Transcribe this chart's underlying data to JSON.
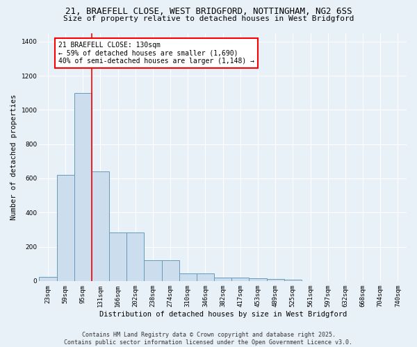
{
  "title_line1": "21, BRAEFELL CLOSE, WEST BRIDGFORD, NOTTINGHAM, NG2 6SS",
  "title_line2": "Size of property relative to detached houses in West Bridgford",
  "xlabel": "Distribution of detached houses by size in West Bridgford",
  "ylabel": "Number of detached properties",
  "categories": [
    "23sqm",
    "59sqm",
    "95sqm",
    "131sqm",
    "166sqm",
    "202sqm",
    "238sqm",
    "274sqm",
    "310sqm",
    "346sqm",
    "382sqm",
    "417sqm",
    "453sqm",
    "489sqm",
    "525sqm",
    "561sqm",
    "597sqm",
    "632sqm",
    "668sqm",
    "704sqm",
    "740sqm"
  ],
  "values": [
    25,
    620,
    1100,
    640,
    285,
    285,
    120,
    120,
    45,
    45,
    20,
    20,
    15,
    10,
    8,
    0,
    0,
    0,
    0,
    0,
    0
  ],
  "bar_color": "#ccdded",
  "bar_edge_color": "#6699bb",
  "red_line_x": 2.5,
  "annotation_text": "21 BRAEFELL CLOSE: 130sqm\n← 59% of detached houses are smaller (1,690)\n40% of semi-detached houses are larger (1,148) →",
  "annotation_box_color": "white",
  "annotation_box_edge": "red",
  "ylim": [
    0,
    1450
  ],
  "yticks": [
    0,
    200,
    400,
    600,
    800,
    1000,
    1200,
    1400
  ],
  "footer_line1": "Contains HM Land Registry data © Crown copyright and database right 2025.",
  "footer_line2": "Contains public sector information licensed under the Open Government Licence v3.0.",
  "bg_color": "#e8f0f8",
  "plot_bg_color": "#e8f0f8",
  "grid_color": "white",
  "title_fontsize": 9,
  "subtitle_fontsize": 8,
  "axis_label_fontsize": 7.5,
  "tick_fontsize": 6.5,
  "annotation_fontsize": 7,
  "footer_fontsize": 6
}
